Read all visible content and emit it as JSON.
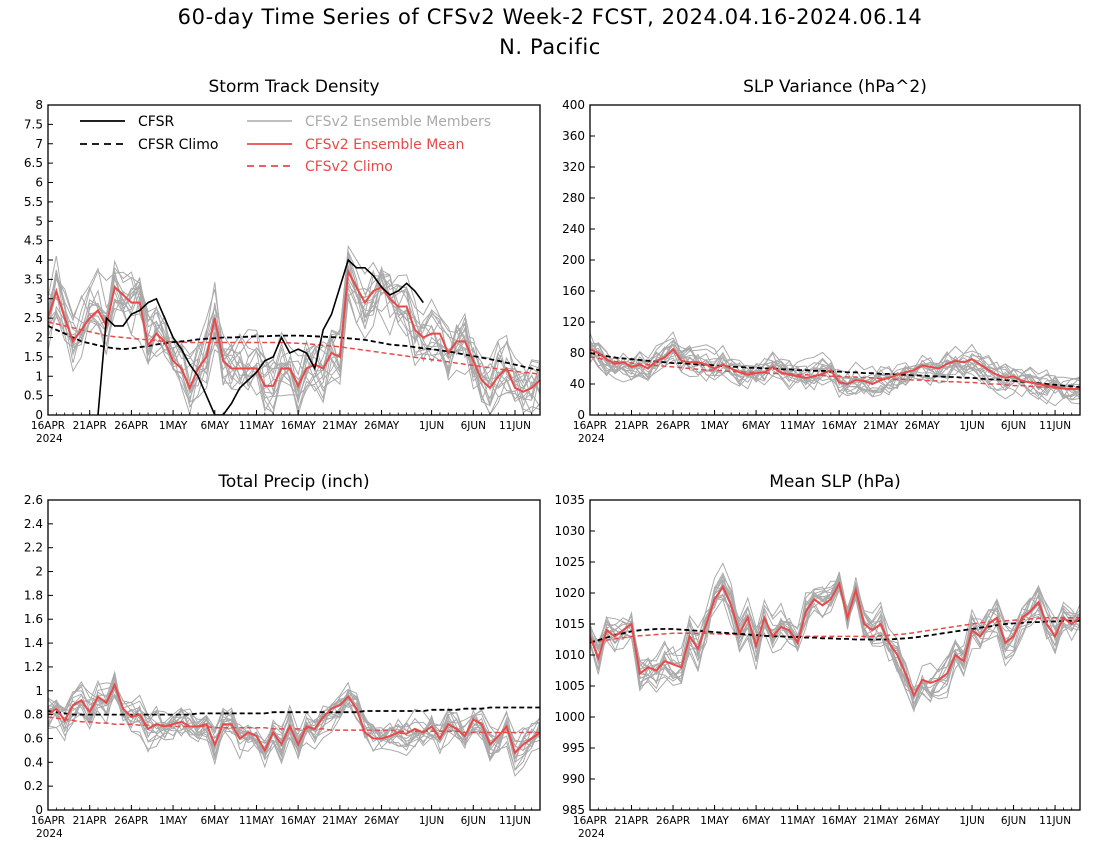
{
  "page": {
    "title": "60-day Time Series of CFSv2 Week-2 FCST, 2024.04.16-2024.06.14",
    "subtitle": "N. Pacific"
  },
  "colors": {
    "cfsr": "#000000",
    "members": "#aaaaaa",
    "ens_mean": "#e84a4a"
  },
  "x_axis": {
    "start": "2024-04-16",
    "end": "2024-06-14",
    "ticks": [
      {
        "day": 0,
        "label": "16APR"
      },
      {
        "day": 5,
        "label": "21APR"
      },
      {
        "day": 10,
        "label": "26APR"
      },
      {
        "day": 15,
        "label": "1MAY"
      },
      {
        "day": 20,
        "label": "6MAY"
      },
      {
        "day": 25,
        "label": "11MAY"
      },
      {
        "day": 30,
        "label": "16MAY"
      },
      {
        "day": 35,
        "label": "21MAY"
      },
      {
        "day": 40,
        "label": "26MAY"
      },
      {
        "day": 46,
        "label": "1JUN"
      },
      {
        "day": 51,
        "label": "6JUN"
      },
      {
        "day": 56,
        "label": "11JUN"
      }
    ],
    "year_label": "2024"
  },
  "legend": {
    "cfsr": "CFSR",
    "cfsr_climo": "CFSR Climo",
    "members": "CFSv2 Ensemble Members",
    "ens_mean": "CFSv2 Ensemble Mean",
    "cfsv2_climo": "CFSv2 Climo"
  },
  "chart_data": [
    {
      "type": "line",
      "title": "Storm Track Density",
      "ylim": [
        0,
        8
      ],
      "yticks": [
        "0",
        "0.5",
        "1",
        "1.5",
        "2",
        "2.5",
        "3",
        "3.5",
        "4",
        "4.5",
        "5",
        "5.5",
        "6",
        "6.5",
        "7",
        "7.5",
        "8"
      ],
      "ensemble_spread": 0.9,
      "series": {
        "cfsr": [
          null,
          null,
          null,
          null,
          null,
          null,
          0,
          2.5,
          2.3,
          2.3,
          2.6,
          2.7,
          2.9,
          3,
          2.5,
          2,
          1.7,
          1.3,
          1,
          0.5,
          0,
          0,
          0.3,
          0.7,
          0.9,
          1.1,
          1.4,
          1.5,
          2,
          1.6,
          1.7,
          1.6,
          1.2,
          2.2,
          2.6,
          3.3,
          4,
          3.8,
          3.8,
          3.6,
          3.3,
          3.1,
          3.2,
          3.4,
          3.2,
          2.9,
          null,
          null,
          null,
          null,
          null,
          null,
          null,
          null,
          null,
          null,
          null,
          null,
          null,
          null
        ],
        "cfsr_climo": [
          2.3,
          2.2,
          2.1,
          2,
          1.9,
          1.85,
          1.8,
          1.75,
          1.72,
          1.7,
          1.72,
          1.75,
          1.78,
          1.82,
          1.85,
          1.88,
          1.9,
          1.92,
          1.95,
          1.97,
          1.98,
          2,
          2,
          2.01,
          2.02,
          2.03,
          2.03,
          2.04,
          2.05,
          2.05,
          2.05,
          2.04,
          2.03,
          2.02,
          2.01,
          2,
          1.98,
          1.96,
          1.94,
          1.9,
          1.86,
          1.82,
          1.8,
          1.78,
          1.75,
          1.72,
          1.7,
          1.67,
          1.64,
          1.6,
          1.56,
          1.52,
          1.48,
          1.44,
          1.4,
          1.35,
          1.3,
          1.25,
          1.2,
          1.15
        ],
        "ens_mean": [
          2.5,
          3.2,
          2.5,
          1.9,
          2.2,
          2.5,
          2.7,
          2.3,
          3.3,
          3.1,
          2.9,
          2.9,
          1.8,
          2.1,
          1.9,
          1.4,
          1.2,
          0.7,
          1.2,
          1.5,
          2.5,
          1.4,
          1.2,
          1.2,
          1.2,
          1.2,
          0.75,
          0.75,
          1.2,
          1.2,
          0.75,
          1.2,
          1.3,
          1.2,
          1.6,
          1.5,
          3.7,
          3.3,
          2.9,
          3.2,
          3.3,
          3,
          2.8,
          2.8,
          2.2,
          2,
          2.1,
          2.1,
          1.6,
          1.9,
          1.9,
          1.4,
          0.9,
          0.7,
          1,
          1.2,
          0.7,
          0.6,
          0.7,
          0.9
        ],
        "cfsv2_climo": [
          2.4,
          2.35,
          2.3,
          2.25,
          2.2,
          2.15,
          2.1,
          2.05,
          2.02,
          2,
          1.98,
          1.96,
          1.94,
          1.92,
          1.9,
          1.89,
          1.88,
          1.87,
          1.87,
          1.87,
          1.87,
          1.87,
          1.87,
          1.87,
          1.87,
          1.87,
          1.87,
          1.87,
          1.87,
          1.86,
          1.85,
          1.84,
          1.82,
          1.8,
          1.78,
          1.76,
          1.73,
          1.7,
          1.67,
          1.64,
          1.61,
          1.58,
          1.55,
          1.52,
          1.49,
          1.46,
          1.43,
          1.4,
          1.37,
          1.34,
          1.31,
          1.28,
          1.25,
          1.22,
          1.19,
          1.16,
          1.13,
          1.1,
          1.08,
          1.05
        ]
      }
    },
    {
      "type": "line",
      "title": "SLP Variance (hPa^2)",
      "ylim": [
        0,
        400
      ],
      "yticks": [
        "0",
        "40",
        "80",
        "120",
        "160",
        "200",
        "240",
        "280",
        "320",
        "360",
        "400"
      ],
      "ensemble_spread": 22,
      "series": {
        "cfsr": [],
        "cfsr_climo": [
          80,
          78,
          76,
          74,
          73,
          72,
          71,
          70,
          69,
          68,
          67,
          67,
          66,
          65,
          65,
          64,
          63,
          62,
          62,
          61,
          61,
          60,
          60,
          59,
          59,
          58,
          58,
          57,
          57,
          56,
          56,
          55,
          55,
          54,
          54,
          53,
          53,
          52,
          52,
          51,
          51,
          50,
          50,
          49,
          49,
          48,
          48,
          47,
          46,
          46,
          45,
          44,
          43,
          42,
          41,
          40,
          39,
          38,
          37,
          36
        ],
        "ens_mean": [
          85,
          80,
          72,
          66,
          68,
          62,
          65,
          60,
          70,
          74,
          85,
          70,
          68,
          68,
          65,
          60,
          65,
          60,
          55,
          52,
          54,
          55,
          62,
          55,
          52,
          50,
          48,
          50,
          53,
          58,
          42,
          40,
          45,
          44,
          40,
          45,
          48,
          52,
          55,
          58,
          64,
          62,
          60,
          66,
          70,
          68,
          72,
          65,
          58,
          52,
          48,
          50,
          44,
          42,
          40,
          38,
          36,
          34,
          33,
          34
        ],
        "cfsv2_climo": [
          75,
          73,
          71,
          69,
          68,
          67,
          66,
          65,
          64,
          63,
          62,
          61,
          60,
          59,
          58,
          58,
          57,
          56,
          56,
          55,
          55,
          54,
          54,
          53,
          53,
          52,
          52,
          51,
          51,
          50,
          50,
          49,
          49,
          48,
          48,
          47,
          47,
          46,
          46,
          45,
          45,
          44,
          44,
          43,
          43,
          42,
          42,
          41,
          40,
          40,
          39,
          38,
          38,
          37,
          36,
          36,
          35,
          34,
          34,
          33
        ]
      }
    },
    {
      "type": "line",
      "title": "Total Precip (inch)",
      "ylim": [
        0,
        2.6
      ],
      "yticks": [
        "0",
        "0.2",
        "0.4",
        "0.6",
        "0.8",
        "1",
        "1.2",
        "1.4",
        "1.6",
        "1.8",
        "2",
        "2.2",
        "2.4",
        "2.6"
      ],
      "ensemble_spread": 0.16,
      "series": {
        "cfsr": [],
        "cfsr_climo": [
          0.83,
          0.82,
          0.81,
          0.8,
          0.8,
          0.8,
          0.8,
          0.8,
          0.8,
          0.8,
          0.8,
          0.8,
          0.8,
          0.8,
          0.8,
          0.8,
          0.8,
          0.8,
          0.81,
          0.81,
          0.81,
          0.81,
          0.81,
          0.81,
          0.81,
          0.81,
          0.81,
          0.82,
          0.82,
          0.82,
          0.82,
          0.82,
          0.82,
          0.82,
          0.82,
          0.82,
          0.82,
          0.82,
          0.83,
          0.83,
          0.83,
          0.83,
          0.83,
          0.83,
          0.83,
          0.83,
          0.84,
          0.84,
          0.84,
          0.84,
          0.85,
          0.85,
          0.85,
          0.86,
          0.86,
          0.86,
          0.86,
          0.86,
          0.86,
          0.86
        ],
        "ens_mean": [
          0.8,
          0.85,
          0.75,
          0.88,
          0.92,
          0.82,
          0.95,
          0.9,
          1.05,
          0.85,
          0.78,
          0.8,
          0.68,
          0.72,
          0.7,
          0.72,
          0.74,
          0.7,
          0.7,
          0.72,
          0.55,
          0.72,
          0.72,
          0.6,
          0.65,
          0.62,
          0.5,
          0.65,
          0.55,
          0.7,
          0.55,
          0.7,
          0.68,
          0.78,
          0.85,
          0.88,
          0.95,
          0.85,
          0.65,
          0.6,
          0.6,
          0.62,
          0.65,
          0.64,
          0.68,
          0.65,
          0.7,
          0.6,
          0.72,
          0.68,
          0.62,
          0.76,
          0.72,
          0.55,
          0.62,
          0.7,
          0.48,
          0.55,
          0.6,
          0.65
        ],
        "cfsv2_climo": [
          0.78,
          0.77,
          0.76,
          0.75,
          0.74,
          0.74,
          0.73,
          0.73,
          0.72,
          0.72,
          0.72,
          0.71,
          0.71,
          0.71,
          0.71,
          0.7,
          0.7,
          0.7,
          0.7,
          0.7,
          0.69,
          0.69,
          0.69,
          0.69,
          0.69,
          0.69,
          0.69,
          0.68,
          0.68,
          0.68,
          0.68,
          0.68,
          0.68,
          0.68,
          0.67,
          0.67,
          0.67,
          0.67,
          0.67,
          0.67,
          0.67,
          0.67,
          0.66,
          0.66,
          0.66,
          0.66,
          0.66,
          0.66,
          0.66,
          0.66,
          0.65,
          0.65,
          0.65,
          0.65,
          0.65,
          0.65,
          0.65,
          0.65,
          0.65,
          0.65
        ]
      }
    },
    {
      "type": "line",
      "title": "Mean SLP (hPa)",
      "ylim": [
        985,
        1035
      ],
      "yticks": [
        "985",
        "990",
        "995",
        "1000",
        "1005",
        "1010",
        "1015",
        "1020",
        "1025",
        "1030",
        "1035"
      ],
      "ensemble_spread": 3.2,
      "series": {
        "cfsr": [],
        "cfsr_climo": [
          1012,
          1012.4,
          1012.8,
          1013.2,
          1013.5,
          1013.8,
          1014,
          1014.1,
          1014.2,
          1014.2,
          1014.2,
          1014.1,
          1014,
          1013.9,
          1013.8,
          1013.7,
          1013.6,
          1013.5,
          1013.4,
          1013.3,
          1013.2,
          1013.1,
          1013,
          1013,
          1012.9,
          1012.9,
          1012.8,
          1012.8,
          1012.7,
          1012.7,
          1012.6,
          1012.6,
          1012.5,
          1012.5,
          1012.5,
          1012.5,
          1012.5,
          1012.6,
          1012.7,
          1012.8,
          1013,
          1013.2,
          1013.4,
          1013.6,
          1013.8,
          1014,
          1014.2,
          1014.4,
          1014.6,
          1014.8,
          1015,
          1015.1,
          1015.2,
          1015.3,
          1015.3,
          1015.4,
          1015.4,
          1015.5,
          1015.5,
          1015.5
        ],
        "ens_mean": [
          1013,
          1009.5,
          1014,
          1013,
          1014,
          1015,
          1007,
          1008,
          1007.5,
          1009,
          1008.5,
          1008,
          1013,
          1011,
          1015,
          1019,
          1021,
          1018,
          1013.5,
          1016,
          1011.5,
          1016,
          1013,
          1014.5,
          1014,
          1012,
          1017,
          1019,
          1018,
          1019,
          1021.5,
          1016,
          1020.5,
          1015,
          1014,
          1015,
          1012,
          1010,
          1007,
          1003.5,
          1006,
          1005.5,
          1006,
          1007,
          1010,
          1009,
          1014,
          1013,
          1015,
          1016,
          1012,
          1013,
          1016,
          1017,
          1018.5,
          1015,
          1013,
          1016,
          1015,
          1016
        ],
        "cfsv2_climo": [
          1012,
          1012.2,
          1012.4,
          1012.6,
          1012.8,
          1013,
          1013.1,
          1013.2,
          1013.3,
          1013.4,
          1013.5,
          1013.5,
          1013.5,
          1013.5,
          1013.5,
          1013.4,
          1013.4,
          1013.3,
          1013.3,
          1013.2,
          1013.2,
          1013.1,
          1013.1,
          1013,
          1013,
          1013,
          1013,
          1013,
          1013,
          1013,
          1013,
          1013,
          1013,
          1013,
          1013,
          1013.1,
          1013.2,
          1013.3,
          1013.4,
          1013.6,
          1013.8,
          1014,
          1014.2,
          1014.4,
          1014.6,
          1014.8,
          1015,
          1015.2,
          1015.3,
          1015.4,
          1015.5,
          1015.6,
          1015.7,
          1015.8,
          1015.9,
          1016,
          1016,
          1016,
          1016,
          1016
        ]
      }
    }
  ]
}
